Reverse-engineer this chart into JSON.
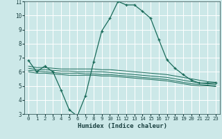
{
  "xlabel": "Humidex (Indice chaleur)",
  "bg_color": "#cce8e8",
  "grid_color": "#ffffff",
  "line_color": "#1a6b5a",
  "xlim": [
    -0.5,
    23.5
  ],
  "ylim": [
    3,
    11
  ],
  "xticks": [
    0,
    1,
    2,
    3,
    4,
    5,
    6,
    7,
    8,
    9,
    10,
    11,
    12,
    13,
    14,
    15,
    16,
    17,
    18,
    19,
    20,
    21,
    22,
    23
  ],
  "yticks": [
    3,
    4,
    5,
    6,
    7,
    8,
    9,
    10,
    11
  ],
  "series": {
    "main_curve": {
      "x": [
        0,
        1,
        2,
        3,
        4,
        5,
        6,
        7,
        8,
        9,
        10,
        11,
        12,
        13,
        14,
        15,
        16,
        17,
        18,
        19,
        20,
        21,
        22,
        23
      ],
      "y": [
        6.8,
        6.0,
        6.4,
        6.0,
        4.7,
        3.3,
        2.85,
        4.3,
        6.7,
        8.9,
        9.8,
        11.0,
        10.75,
        10.75,
        10.3,
        9.8,
        8.3,
        6.85,
        6.25,
        5.8,
        5.4,
        5.2,
        5.2,
        5.2
      ]
    },
    "flat1": {
      "x": [
        0,
        1,
        2,
        3,
        4,
        5,
        6,
        7,
        8,
        9,
        10,
        11,
        12,
        13,
        14,
        15,
        16,
        17,
        18,
        19,
        20,
        21,
        22,
        23
      ],
      "y": [
        6.4,
        6.3,
        6.3,
        6.25,
        6.2,
        6.2,
        6.2,
        6.2,
        6.2,
        6.15,
        6.15,
        6.1,
        6.05,
        6.0,
        5.95,
        5.9,
        5.85,
        5.8,
        5.7,
        5.6,
        5.5,
        5.4,
        5.3,
        5.25
      ]
    },
    "flat2": {
      "x": [
        0,
        1,
        2,
        3,
        4,
        5,
        6,
        7,
        8,
        9,
        10,
        11,
        12,
        13,
        14,
        15,
        16,
        17,
        18,
        19,
        20,
        21,
        22,
        23
      ],
      "y": [
        6.25,
        6.15,
        6.15,
        6.1,
        6.05,
        6.05,
        6.0,
        6.0,
        6.0,
        6.0,
        5.95,
        5.9,
        5.85,
        5.8,
        5.75,
        5.7,
        5.65,
        5.6,
        5.5,
        5.4,
        5.3,
        5.2,
        5.15,
        5.1
      ]
    },
    "flat3": {
      "x": [
        0,
        1,
        2,
        3,
        4,
        5,
        6,
        7,
        8,
        9,
        10,
        11,
        12,
        13,
        14,
        15,
        16,
        17,
        18,
        19,
        20,
        21,
        22,
        23
      ],
      "y": [
        6.1,
        6.05,
        6.0,
        5.95,
        5.9,
        5.9,
        5.9,
        5.85,
        5.85,
        5.8,
        5.8,
        5.75,
        5.7,
        5.65,
        5.6,
        5.55,
        5.5,
        5.45,
        5.35,
        5.25,
        5.15,
        5.1,
        5.05,
        5.0
      ]
    },
    "flat4": {
      "x": [
        0,
        1,
        2,
        3,
        4,
        5,
        6,
        7,
        8,
        9,
        10,
        11,
        12,
        13,
        14,
        15,
        16,
        17,
        18,
        19,
        20,
        21,
        22,
        23
      ],
      "y": [
        6.0,
        5.9,
        5.9,
        5.85,
        5.8,
        5.75,
        5.75,
        5.75,
        5.75,
        5.7,
        5.7,
        5.65,
        5.6,
        5.55,
        5.5,
        5.45,
        5.4,
        5.35,
        5.25,
        5.15,
        5.05,
        5.0,
        5.0,
        4.95
      ]
    }
  }
}
